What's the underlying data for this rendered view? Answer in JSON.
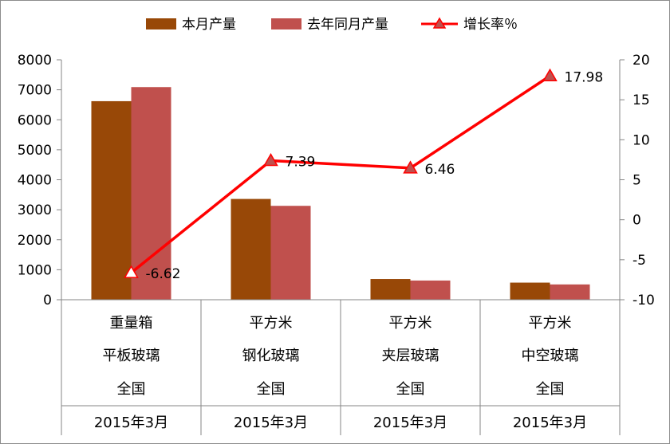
{
  "chart_data": {
    "type": "bar",
    "categories": [
      [
        "重量箱",
        "平板玻璃",
        "全国",
        "2015年3月"
      ],
      [
        "平方米",
        "钢化玻璃",
        "全国",
        "2015年3月"
      ],
      [
        "平方米",
        "夹层玻璃",
        "全国",
        "2015年3月"
      ],
      [
        "平方米",
        "中空玻璃",
        "全国",
        "2015年3月"
      ]
    ],
    "series": [
      {
        "name": "本月产量",
        "type": "bar",
        "axis": "left",
        "color": "#984807",
        "values": [
          6620,
          3360,
          690,
          570
        ]
      },
      {
        "name": "去年同月产量",
        "type": "bar",
        "axis": "left",
        "color": "#c0504d",
        "values": [
          7090,
          3130,
          640,
          510
        ]
      },
      {
        "name": "增长率％",
        "type": "line",
        "axis": "right",
        "color": "#ff0000",
        "marker": "triangle",
        "values": [
          -6.62,
          7.39,
          6.46,
          17.98
        ],
        "labels": [
          "-6.62",
          "7.39",
          "6.46",
          "17.98"
        ]
      }
    ],
    "y_left": {
      "min": 0,
      "max": 8000,
      "step": 1000,
      "ticks": [
        "0",
        "1000",
        "2000",
        "3000",
        "4000",
        "5000",
        "6000",
        "7000",
        "8000"
      ]
    },
    "y_right": {
      "min": -10,
      "max": 20,
      "step": 5,
      "ticks": [
        "-10",
        "-5",
        "0",
        "5",
        "10",
        "15",
        "20"
      ]
    },
    "legend": "top",
    "grid": false
  }
}
